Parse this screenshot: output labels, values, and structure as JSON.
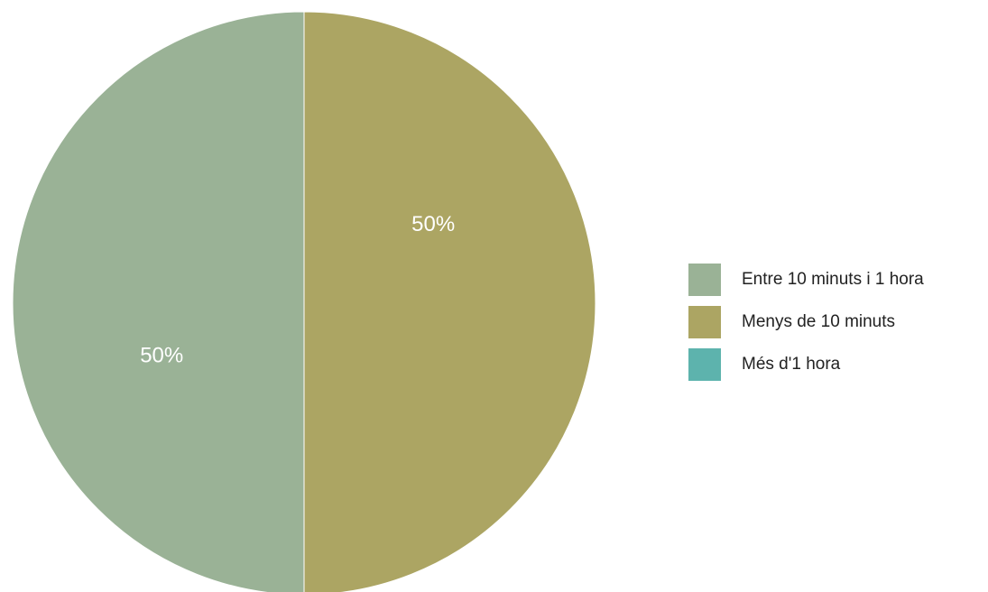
{
  "chart_data": {
    "type": "pie",
    "categories": [
      "Entre 10 minuts i 1 hora",
      "Menys de 10 minuts",
      "Més d'1 hora"
    ],
    "values": [
      50,
      50,
      0
    ],
    "unit": "%",
    "colors": [
      "#9ab296",
      "#aca563",
      "#5db3ad"
    ],
    "slice_labels": [
      "50%",
      "50%",
      ""
    ],
    "legend_position": "right",
    "start_direction": "clockwise from top, first slice counter-clockwise"
  },
  "legend": {
    "items": [
      {
        "label": "Entre 10 minuts i 1 hora",
        "color": "#9ab296"
      },
      {
        "label": "Menys de 10 minuts",
        "color": "#aca563"
      },
      {
        "label": "Més d'1 hora",
        "color": "#5db3ad"
      }
    ]
  }
}
